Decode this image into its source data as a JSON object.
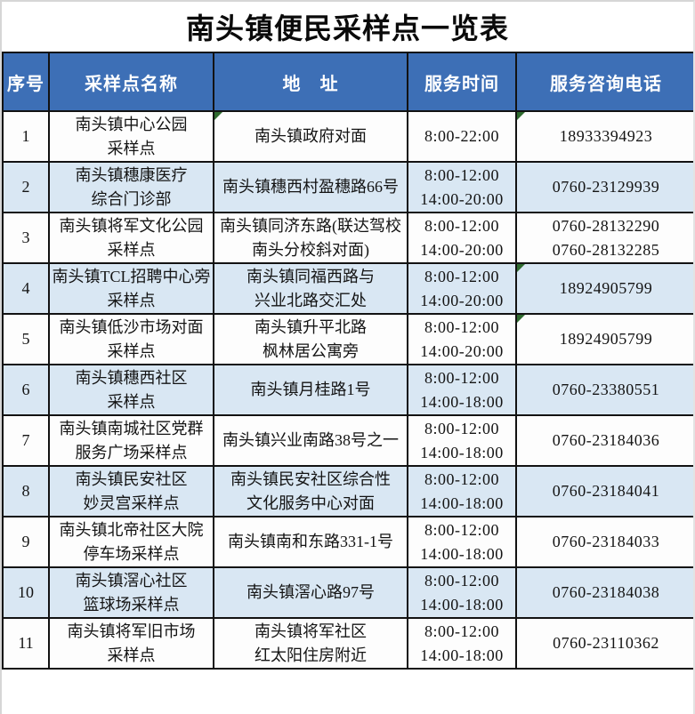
{
  "title": "南头镇便民采样点一览表",
  "table": {
    "headers": [
      "序号",
      "采样点名称",
      "地　址",
      "服务时间",
      "服务咨询电话"
    ],
    "rows": [
      {
        "no": "1",
        "name": [
          "南头镇中心公园",
          "采样点"
        ],
        "address": [
          "南头镇政府对面"
        ],
        "time": [
          "8:00-22:00"
        ],
        "phone": [
          "18933394923"
        ],
        "markers": [
          "address",
          "phone"
        ]
      },
      {
        "no": "2",
        "name": [
          "南头镇穗康医疗",
          "综合门诊部"
        ],
        "address": [
          "南头镇穗西村盈穗路66号"
        ],
        "time": [
          "8:00-12:00",
          "14:00-20:00"
        ],
        "phone": [
          "0760-23129939"
        ],
        "markers": []
      },
      {
        "no": "3",
        "name": [
          "南头镇将军文化公园",
          "采样点"
        ],
        "address": [
          "南头镇同济东路(联达驾校",
          "南头分校斜对面)"
        ],
        "time": [
          "8:00-12:00",
          "14:00-20:00"
        ],
        "phone": [
          "0760-28132290",
          "0760-28132285"
        ],
        "markers": []
      },
      {
        "no": "4",
        "name": [
          "南头镇TCL招聘中心旁",
          "采样点"
        ],
        "address": [
          "南头镇同福西路与",
          "兴业北路交汇处"
        ],
        "time": [
          "8:00-12:00",
          "14:00-20:00"
        ],
        "phone": [
          "18924905799"
        ],
        "markers": [
          "phone"
        ]
      },
      {
        "no": "5",
        "name": [
          "南头镇低沙市场对面",
          "采样点"
        ],
        "address": [
          "南头镇升平北路",
          "枫林居公寓旁"
        ],
        "time": [
          "8:00-12:00",
          "14:00-20:00"
        ],
        "phone": [
          "18924905799"
        ],
        "markers": [
          "phone"
        ]
      },
      {
        "no": "6",
        "name": [
          "南头镇穗西社区",
          "采样点"
        ],
        "address": [
          "南头镇月桂路1号"
        ],
        "time": [
          "8:00-12:00",
          "14:00-18:00"
        ],
        "phone": [
          "0760-23380551"
        ],
        "markers": []
      },
      {
        "no": "7",
        "name": [
          "南头镇南城社区党群",
          "服务广场采样点"
        ],
        "address": [
          "南头镇兴业南路38号之一"
        ],
        "time": [
          "8:00-12:00",
          "14:00-18:00"
        ],
        "phone": [
          "0760-23184036"
        ],
        "markers": []
      },
      {
        "no": "8",
        "name": [
          "南头镇民安社区",
          "妙灵宫采样点"
        ],
        "address": [
          "南头镇民安社区综合性",
          "文化服务中心对面"
        ],
        "time": [
          "8:00-12:00",
          "14:00-18:00"
        ],
        "phone": [
          "0760-23184041"
        ],
        "markers": []
      },
      {
        "no": "9",
        "name": [
          "南头镇北帝社区大院",
          "停车场采样点"
        ],
        "address": [
          "南头镇南和东路331-1号"
        ],
        "time": [
          "8:00-12:00",
          "14:00-18:00"
        ],
        "phone": [
          "0760-23184033"
        ],
        "markers": []
      },
      {
        "no": "10",
        "name": [
          "南头镇滘心社区",
          "篮球场采样点"
        ],
        "address": [
          "南头镇滘心路97号"
        ],
        "time": [
          "8:00-12:00",
          "14:00-18:00"
        ],
        "phone": [
          "0760-23184038"
        ],
        "markers": []
      },
      {
        "no": "11",
        "name": [
          "南头镇将军旧市场",
          "采样点"
        ],
        "address": [
          "南头镇将军社区",
          "红太阳住房附近"
        ],
        "time": [
          "8:00-12:00",
          "14:00-18:00"
        ],
        "phone": [
          "0760-23110362"
        ],
        "markers": []
      }
    ]
  },
  "colors": {
    "header_bg": "#3d6fb6",
    "header_text": "#ffffff",
    "row_bg": "#fdfdfd",
    "row_alt_bg": "#d9e7f3",
    "grid_border": "#121212",
    "marker_green": "#2f6b2f",
    "title_text": "#0a0a0a"
  }
}
